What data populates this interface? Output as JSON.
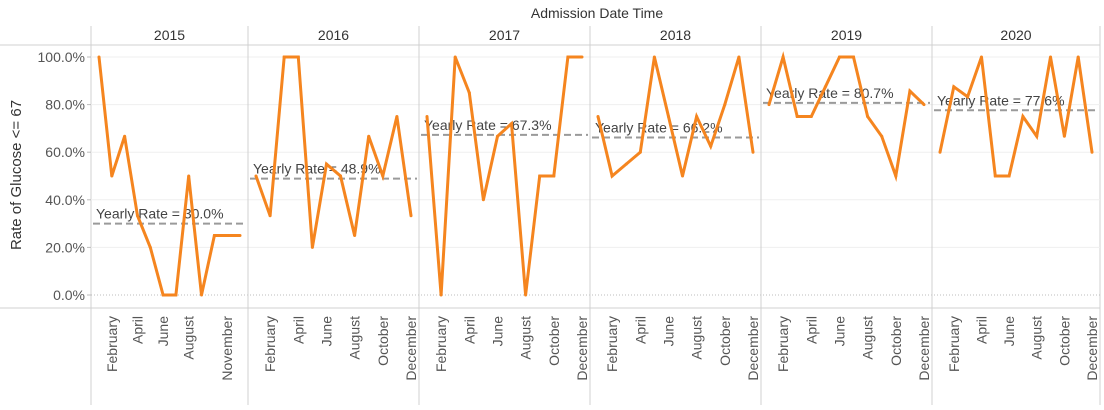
{
  "chart_data": {
    "type": "line",
    "column_title": "Admission Date Time",
    "ylabel": "Rate of Glucose <= 67",
    "ylim": [
      0,
      100
    ],
    "y_ticks": [
      "0.0%",
      "20.0%",
      "40.0%",
      "60.0%",
      "80.0%",
      "100.0%"
    ],
    "color": "#f5851f",
    "reference_line_color": "#9a9a9a",
    "reference_prefix": "Yearly Rate = ",
    "panels": [
      {
        "year": "2015",
        "months": [
          1,
          2,
          3,
          4,
          5,
          6,
          7,
          8,
          9,
          10,
          11,
          12
        ],
        "values": [
          100,
          50,
          66.7,
          33.3,
          20,
          0,
          0,
          50,
          0,
          25,
          25,
          25
        ],
        "x_ticks": [
          {
            "m": 2,
            "label": "February"
          },
          {
            "m": 4,
            "label": "April"
          },
          {
            "m": 6,
            "label": "June"
          },
          {
            "m": 8,
            "label": "August"
          },
          {
            "m": 11,
            "label": "November"
          }
        ],
        "reference": {
          "value": 30.0,
          "label": "30.0%"
        }
      },
      {
        "year": "2016",
        "months": [
          1,
          2,
          3,
          4,
          5,
          6,
          7,
          8,
          9,
          10,
          11,
          12
        ],
        "values": [
          50,
          33.3,
          100,
          100,
          20,
          55,
          50,
          25,
          66.7,
          50,
          75,
          33.3
        ],
        "x_ticks": [
          {
            "m": 2,
            "label": "February"
          },
          {
            "m": 4,
            "label": "April"
          },
          {
            "m": 6,
            "label": "June"
          },
          {
            "m": 8,
            "label": "August"
          },
          {
            "m": 10,
            "label": "October"
          },
          {
            "m": 12,
            "label": "December"
          }
        ],
        "reference": {
          "value": 48.9,
          "label": "48.9%"
        }
      },
      {
        "year": "2017",
        "months": [
          1,
          2,
          3,
          4,
          5,
          6,
          7,
          8,
          9,
          10,
          11,
          12
        ],
        "values": [
          75,
          0,
          100,
          85,
          40,
          66.7,
          72,
          0,
          50,
          50,
          100,
          100
        ],
        "x_ticks": [
          {
            "m": 2,
            "label": "February"
          },
          {
            "m": 4,
            "label": "April"
          },
          {
            "m": 6,
            "label": "June"
          },
          {
            "m": 8,
            "label": "August"
          },
          {
            "m": 10,
            "label": "October"
          },
          {
            "m": 12,
            "label": "December"
          }
        ],
        "reference": {
          "value": 67.3,
          "label": "67.3%"
        }
      },
      {
        "year": "2018",
        "months": [
          1,
          2,
          3,
          4,
          5,
          6,
          7,
          8,
          9,
          10,
          11,
          12
        ],
        "values": [
          75,
          50,
          55,
          60,
          100,
          75,
          50,
          75,
          62.5,
          80,
          100,
          60
        ],
        "x_ticks": [
          {
            "m": 2,
            "label": "February"
          },
          {
            "m": 4,
            "label": "April"
          },
          {
            "m": 6,
            "label": "June"
          },
          {
            "m": 8,
            "label": "August"
          },
          {
            "m": 10,
            "label": "October"
          },
          {
            "m": 12,
            "label": "December"
          }
        ],
        "reference": {
          "value": 66.2,
          "label": "66.2%"
        }
      },
      {
        "year": "2019",
        "months": [
          1,
          2,
          3,
          4,
          5,
          6,
          7,
          8,
          9,
          10,
          11,
          12
        ],
        "values": [
          80,
          100,
          75,
          75,
          87.5,
          100,
          100,
          75,
          66.7,
          50,
          85.7,
          80
        ],
        "x_ticks": [
          {
            "m": 2,
            "label": "February"
          },
          {
            "m": 4,
            "label": "April"
          },
          {
            "m": 6,
            "label": "June"
          },
          {
            "m": 8,
            "label": "August"
          },
          {
            "m": 10,
            "label": "October"
          },
          {
            "m": 12,
            "label": "December"
          }
        ],
        "reference": {
          "value": 80.7,
          "label": "80.7%"
        }
      },
      {
        "year": "2020",
        "months": [
          1,
          2,
          3,
          4,
          5,
          6,
          7,
          8,
          9,
          10,
          11,
          12
        ],
        "values": [
          60,
          87.5,
          83.3,
          100,
          50,
          50,
          75,
          66.7,
          100,
          66.7,
          100,
          60
        ],
        "x_ticks": [
          {
            "m": 2,
            "label": "February"
          },
          {
            "m": 4,
            "label": "April"
          },
          {
            "m": 6,
            "label": "June"
          },
          {
            "m": 8,
            "label": "August"
          },
          {
            "m": 10,
            "label": "October"
          },
          {
            "m": 12,
            "label": "December"
          }
        ],
        "reference": {
          "value": 77.6,
          "label": "77.6%"
        }
      }
    ]
  }
}
